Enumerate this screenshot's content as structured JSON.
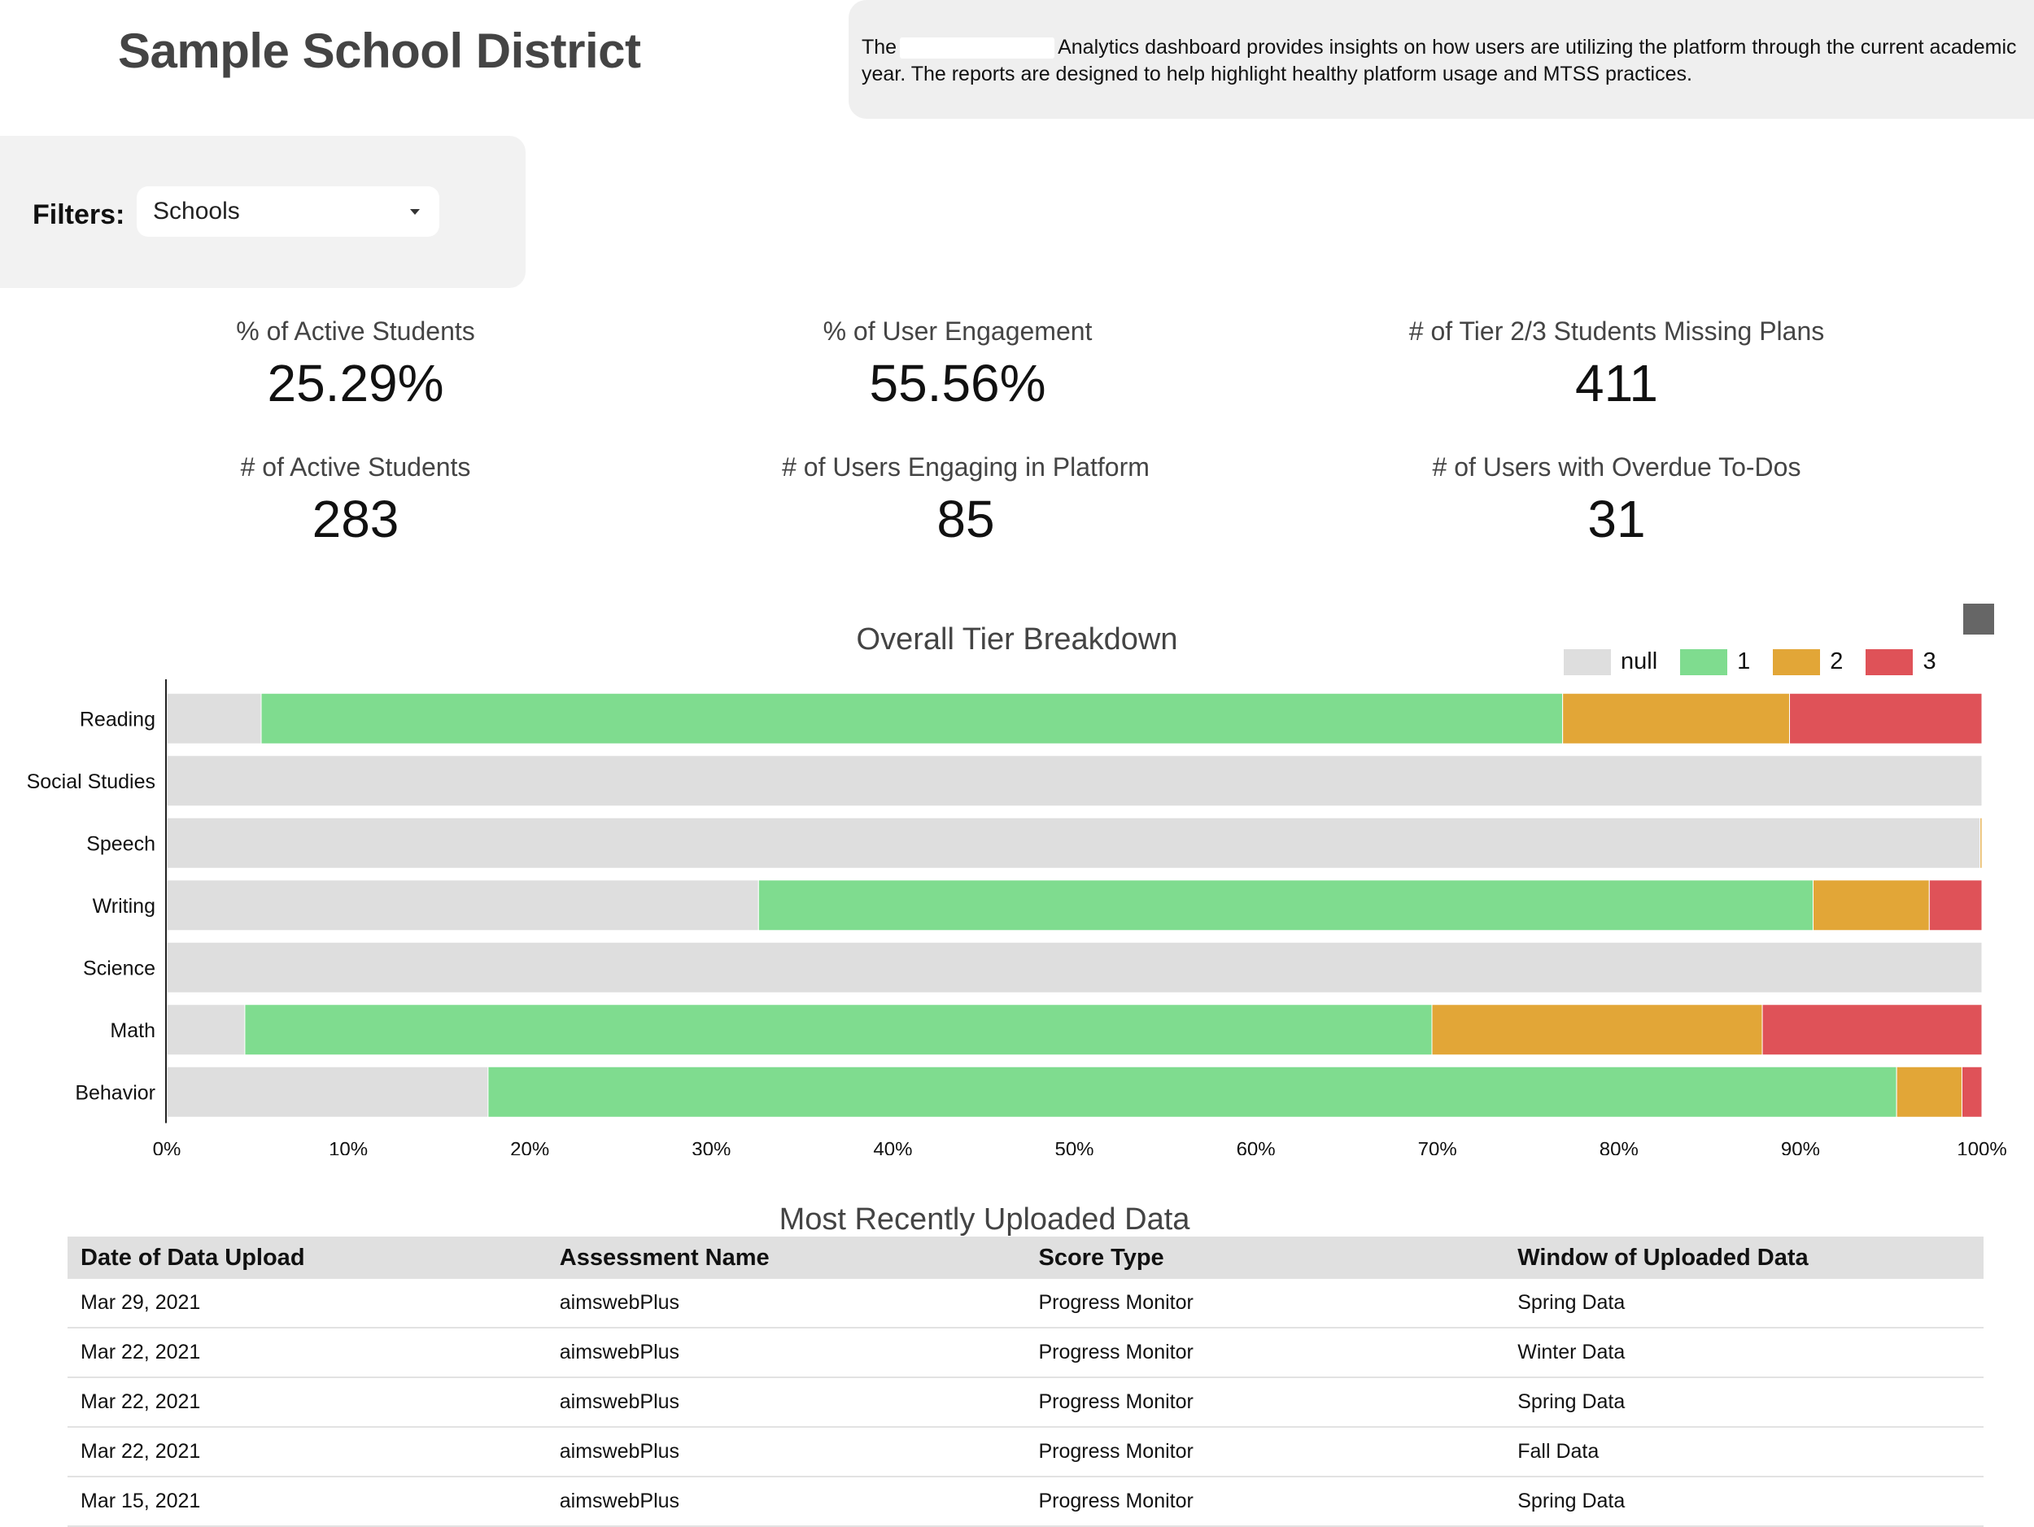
{
  "header": {
    "title": "Sample School District",
    "description_before": "The",
    "description_after": "Analytics dashboard provides insights on how users are utilizing the platform through the current academic year. The reports are designed to help highlight healthy platform usage and MTSS practices."
  },
  "filters": {
    "label": "Filters:",
    "school_select_value": "Schools"
  },
  "kpis": {
    "active_students_pct": {
      "label": "% of Active Students",
      "value": "25.29%"
    },
    "user_engagement_pct": {
      "label": "% of User Engagement",
      "value": "55.56%"
    },
    "missing_plans": {
      "label": "# of Tier 2/3 Students Missing Plans",
      "value": "411"
    },
    "active_students": {
      "label": "# of Active Students",
      "value": "283"
    },
    "users_engaging": {
      "label": "# of Users Engaging in Platform",
      "value": "85"
    },
    "overdue_todos": {
      "label": "# of Users with Overdue To-Dos",
      "value": "31"
    }
  },
  "chart_data": {
    "type": "bar",
    "orientation": "horizontal",
    "stacked": true,
    "normalized": true,
    "title": "Overall Tier Breakdown",
    "categories": [
      "Reading",
      "Social Studies",
      "Speech",
      "Writing",
      "Science",
      "Math",
      "Behavior"
    ],
    "series": [
      {
        "name": "null",
        "color": "#dedede",
        "values": [
          5.2,
          100,
          99.9,
          32.6,
          100,
          4.3,
          17.7
        ]
      },
      {
        "name": "1",
        "color": "#7fdc8f",
        "values": [
          71.7,
          0,
          0,
          58.1,
          0,
          65.4,
          77.6
        ]
      },
      {
        "name": "2",
        "color": "#e2a637",
        "values": [
          12.5,
          0,
          0.1,
          6.4,
          0,
          18.2,
          3.6
        ]
      },
      {
        "name": "3",
        "color": "#df5258",
        "values": [
          10.6,
          0,
          0,
          2.9,
          0,
          12.1,
          1.1
        ]
      }
    ],
    "xlim": [
      0,
      100
    ],
    "x_ticks": [
      "0%",
      "10%",
      "20%",
      "30%",
      "40%",
      "50%",
      "60%",
      "70%",
      "80%",
      "90%",
      "100%"
    ],
    "legend_position": "top-right"
  },
  "uploads": {
    "title": "Most Recently Uploaded Data",
    "columns": [
      "Date of Data Upload",
      "Assessment Name",
      "Score Type",
      "Window of Uploaded Data"
    ],
    "rows": [
      [
        "Mar 29, 2021",
        "aimswebPlus",
        "Progress Monitor",
        "Spring Data"
      ],
      [
        "Mar 22, 2021",
        "aimswebPlus",
        "Progress Monitor",
        "Winter Data"
      ],
      [
        "Mar 22, 2021",
        "aimswebPlus",
        "Progress Monitor",
        "Spring Data"
      ],
      [
        "Mar 22, 2021",
        "aimswebPlus",
        "Progress Monitor",
        "Fall Data"
      ],
      [
        "Mar 15, 2021",
        "aimswebPlus",
        "Progress Monitor",
        "Spring Data"
      ]
    ]
  }
}
